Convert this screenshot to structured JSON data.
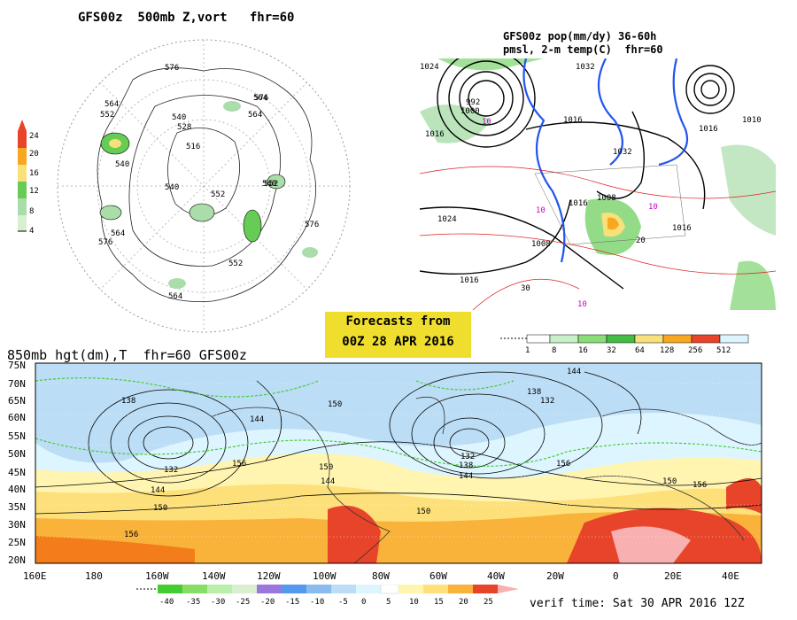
{
  "panel1": {
    "title": "GFS00z  500mb Z,vort   fhr=60",
    "colorbar": {
      "ticks": [
        "24",
        "20",
        "16",
        "12",
        "8",
        "4"
      ],
      "colors": [
        "#e8442a",
        "#f7a820",
        "#f8e07a",
        "#b8e8a0",
        "#66cc55",
        "#aaddaa"
      ]
    },
    "contour_labels": [
      "576",
      "564",
      "552",
      "540",
      "528",
      "516",
      "540",
      "552",
      "564",
      "576",
      "576",
      "552",
      "564",
      "540",
      "564",
      "576",
      "564",
      "540",
      "552"
    ]
  },
  "panel2": {
    "title_line1": "GFS00z pop(mm/dy) 36-60h",
    "title_line2": "pmsl, 2-m temp(C)  fhr=60",
    "labels": [
      "992",
      "1000",
      "1016",
      "1024",
      "1016",
      "1032",
      "1016",
      "1008",
      "1016",
      "1008",
      "1016",
      "1024",
      "1016",
      "1032",
      "1010",
      "10",
      "10",
      "10",
      "10",
      "30",
      "20"
    ]
  },
  "banner": {
    "line1": "Forecasts from",
    "line2": "00Z 28 APR 2016"
  },
  "pop_scale": {
    "ticks": [
      "1",
      "8",
      "16",
      "32",
      "64",
      "128",
      "256",
      "512"
    ],
    "colors": [
      "#ffffff",
      "#c8f0c8",
      "#88dd77",
      "#44bb44",
      "#f8e07a",
      "#f7a820",
      "#e8442a",
      "#ffe8ff"
    ]
  },
  "panel3": {
    "title": "850mb hgt(dm),T  fhr=60 GFS00z",
    "lat_labels": [
      "75N",
      "70N",
      "65N",
      "60N",
      "55N",
      "50N",
      "45N",
      "40N",
      "35N",
      "30N",
      "25N",
      "20N"
    ],
    "lon_labels": [
      "160E",
      "180",
      "160W",
      "140W",
      "120W",
      "100W",
      "80W",
      "60W",
      "40W",
      "20W",
      "0",
      "20E",
      "40E"
    ],
    "contour_labels": [
      "138",
      "144",
      "132",
      "144",
      "150",
      "156",
      "150",
      "144",
      "150",
      "156",
      "132",
      "138",
      "144",
      "138",
      "132",
      "144",
      "156",
      "150",
      "150",
      "156"
    ]
  },
  "temp_scale": {
    "ticks": [
      "-40",
      "-35",
      "-30",
      "-25",
      "-20",
      "-15",
      "-10",
      "-5",
      "0",
      "5",
      "10",
      "15",
      "20",
      "25"
    ],
    "colors": [
      "#44cc33",
      "#88dd66",
      "#bbeeaa",
      "#d8f0d0",
      "#9977dd",
      "#5599ee",
      "#88bbee",
      "#bbddf5",
      "#ddf5ff",
      "#ffffff",
      "#fff5b0",
      "#fde07a",
      "#f9b23a",
      "#f27d1a",
      "#e8442a",
      "#f8b0b0"
    ]
  },
  "verif": "verif time: Sat 30 APR 2016 12Z"
}
